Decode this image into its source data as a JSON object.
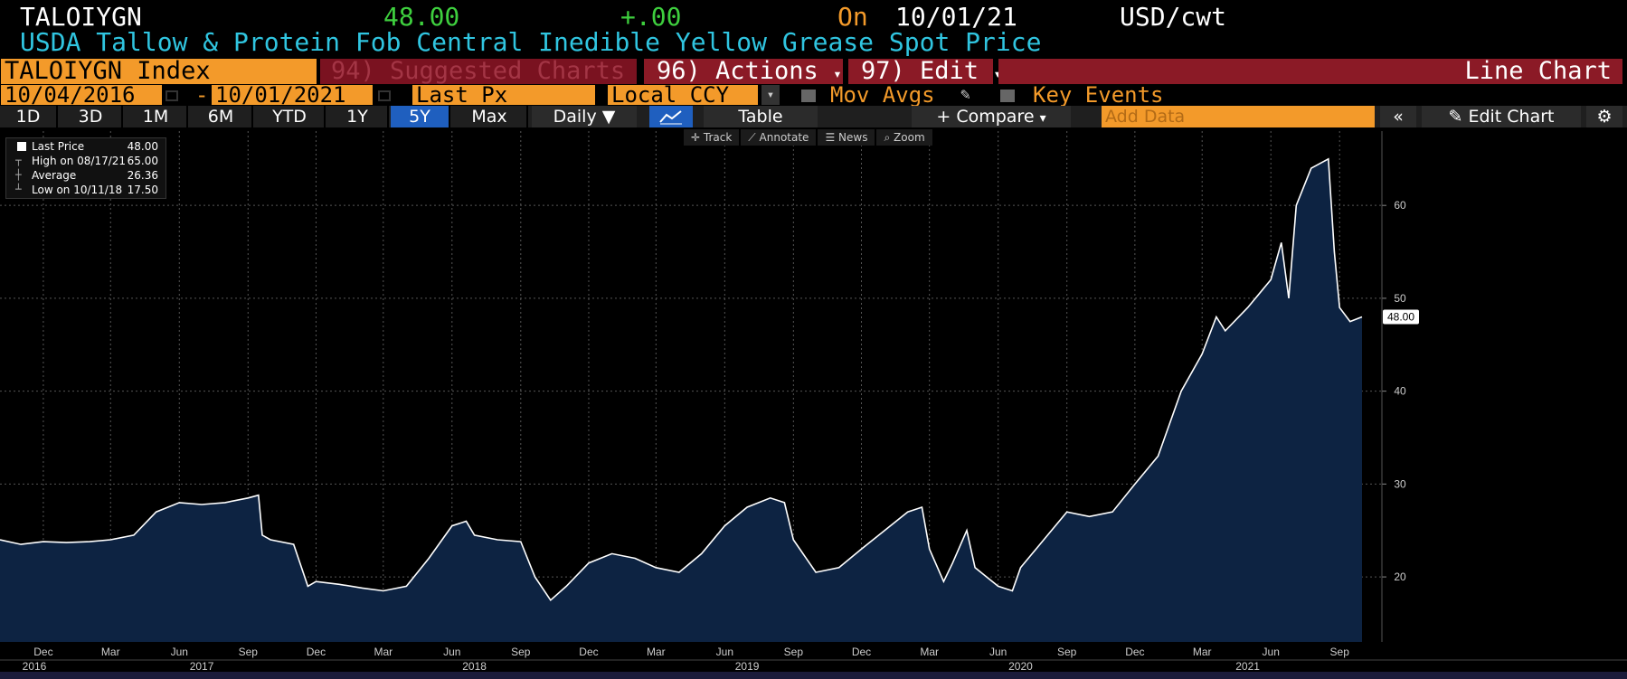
{
  "header": {
    "ticker": "TALOIYGN",
    "price": "48.00",
    "change": "+.00",
    "on_label": "On",
    "date": "10/01/21",
    "unit": "USD/cwt",
    "description": "USDA Tallow & Protein Fob Central Inedible Yellow Grease Spot Price"
  },
  "menu": {
    "index": "TALOIYGN Index",
    "suggested": "94) Suggested Charts",
    "actions": "96) Actions",
    "edit": "97) Edit",
    "chart_kind": "Line Chart"
  },
  "controls": {
    "start_date": "10/04/2016",
    "dash": "-",
    "end_date": "10/01/2021",
    "field": "Last Px",
    "currency": "Local CCY",
    "mov_avgs": "Mov Avgs",
    "key_events": "Key Events"
  },
  "timeframes": [
    "1D",
    "3D",
    "1M",
    "6M",
    "YTD",
    "1Y",
    "5Y",
    "Max"
  ],
  "active_timeframe": "5Y",
  "toolbar": {
    "period": "Daily",
    "table": "Table",
    "compare": "+ Compare",
    "add_data_placeholder": "Add Data",
    "edit_chart": "Edit Chart"
  },
  "tools": {
    "track": "Track",
    "annotate": "Annotate",
    "news": "News",
    "zoom": "Zoom"
  },
  "legend": {
    "last_label": "Last Price",
    "last_value": "48.00",
    "high_label": "High on 08/17/21",
    "high_value": "65.00",
    "avg_label": "Average",
    "avg_value": "26.36",
    "low_label": "Low on 10/11/18",
    "low_value": "17.50"
  },
  "colors": {
    "background": "#000000",
    "line": "#ffffff",
    "fill": "#0d2342",
    "accent": "#f39a2a",
    "title": "#30c5e0",
    "price": "#3ecf3e"
  },
  "chart_data": {
    "type": "area",
    "x_start": "2016-10-04",
    "x_end": "2021-10-01",
    "ylim": [
      13,
      68
    ],
    "yticks": [
      20,
      30,
      40,
      50,
      60
    ],
    "last_value_label": "48.00",
    "grid": true,
    "legend_position": "top-left",
    "month_ticks": [
      {
        "label": "Dec",
        "date": "2016-12-01"
      },
      {
        "label": "Mar",
        "date": "2017-03-01"
      },
      {
        "label": "Jun",
        "date": "2017-06-01"
      },
      {
        "label": "Sep",
        "date": "2017-09-01"
      },
      {
        "label": "Dec",
        "date": "2017-12-01"
      },
      {
        "label": "Mar",
        "date": "2018-03-01"
      },
      {
        "label": "Jun",
        "date": "2018-06-01"
      },
      {
        "label": "Sep",
        "date": "2018-09-01"
      },
      {
        "label": "Dec",
        "date": "2018-12-01"
      },
      {
        "label": "Mar",
        "date": "2019-03-01"
      },
      {
        "label": "Jun",
        "date": "2019-06-01"
      },
      {
        "label": "Sep",
        "date": "2019-09-01"
      },
      {
        "label": "Dec",
        "date": "2019-12-01"
      },
      {
        "label": "Mar",
        "date": "2020-03-01"
      },
      {
        "label": "Jun",
        "date": "2020-06-01"
      },
      {
        "label": "Sep",
        "date": "2020-09-01"
      },
      {
        "label": "Dec",
        "date": "2020-12-01"
      },
      {
        "label": "Mar",
        "date": "2021-03-01"
      },
      {
        "label": "Jun",
        "date": "2021-06-01"
      },
      {
        "label": "Sep",
        "date": "2021-09-01"
      }
    ],
    "year_ticks": [
      {
        "label": "2016",
        "date": "2016-10-04"
      },
      {
        "label": "2017",
        "date": "2017-07-01"
      },
      {
        "label": "2018",
        "date": "2018-07-01"
      },
      {
        "label": "2019",
        "date": "2019-07-01"
      },
      {
        "label": "2020",
        "date": "2020-07-01"
      },
      {
        "label": "2021",
        "date": "2021-05-01"
      }
    ],
    "series": [
      {
        "points": [
          [
            "2016-10-04",
            24.0
          ],
          [
            "2016-11-01",
            23.5
          ],
          [
            "2016-12-01",
            23.8
          ],
          [
            "2017-01-01",
            23.7
          ],
          [
            "2017-02-01",
            23.8
          ],
          [
            "2017-03-01",
            24.0
          ],
          [
            "2017-04-01",
            24.5
          ],
          [
            "2017-05-01",
            27.0
          ],
          [
            "2017-06-01",
            28.0
          ],
          [
            "2017-07-01",
            27.8
          ],
          [
            "2017-08-01",
            28.0
          ],
          [
            "2017-09-01",
            28.5
          ],
          [
            "2017-09-15",
            28.8
          ],
          [
            "2017-09-20",
            24.5
          ],
          [
            "2017-10-01",
            24.0
          ],
          [
            "2017-11-01",
            23.5
          ],
          [
            "2017-11-20",
            19.0
          ],
          [
            "2017-12-01",
            19.5
          ],
          [
            "2018-01-01",
            19.2
          ],
          [
            "2018-02-01",
            18.8
          ],
          [
            "2018-03-01",
            18.5
          ],
          [
            "2018-04-01",
            19.0
          ],
          [
            "2018-05-01",
            22.0
          ],
          [
            "2018-06-01",
            25.5
          ],
          [
            "2018-06-20",
            26.0
          ],
          [
            "2018-07-01",
            24.5
          ],
          [
            "2018-08-01",
            24.0
          ],
          [
            "2018-09-01",
            23.8
          ],
          [
            "2018-09-20",
            20.0
          ],
          [
            "2018-10-11",
            17.5
          ],
          [
            "2018-11-01",
            19.0
          ],
          [
            "2018-12-01",
            21.5
          ],
          [
            "2019-01-01",
            22.5
          ],
          [
            "2019-02-01",
            22.0
          ],
          [
            "2019-03-01",
            21.0
          ],
          [
            "2019-04-01",
            20.5
          ],
          [
            "2019-05-01",
            22.5
          ],
          [
            "2019-06-01",
            25.5
          ],
          [
            "2019-07-01",
            27.5
          ],
          [
            "2019-08-01",
            28.5
          ],
          [
            "2019-08-20",
            28.0
          ],
          [
            "2019-09-01",
            24.0
          ],
          [
            "2019-10-01",
            20.5
          ],
          [
            "2019-11-01",
            21.0
          ],
          [
            "2019-12-01",
            23.0
          ],
          [
            "2020-01-01",
            25.0
          ],
          [
            "2020-02-01",
            27.0
          ],
          [
            "2020-02-20",
            27.5
          ],
          [
            "2020-03-01",
            23.0
          ],
          [
            "2020-03-20",
            19.5
          ],
          [
            "2020-04-01",
            21.5
          ],
          [
            "2020-04-20",
            25.0
          ],
          [
            "2020-05-01",
            21.0
          ],
          [
            "2020-06-01",
            19.0
          ],
          [
            "2020-06-20",
            18.5
          ],
          [
            "2020-07-01",
            21.0
          ],
          [
            "2020-08-01",
            24.0
          ],
          [
            "2020-09-01",
            27.0
          ],
          [
            "2020-10-01",
            26.5
          ],
          [
            "2020-11-01",
            27.0
          ],
          [
            "2020-12-01",
            30.0
          ],
          [
            "2021-01-01",
            33.0
          ],
          [
            "2021-02-01",
            40.0
          ],
          [
            "2021-03-01",
            44.0
          ],
          [
            "2021-03-20",
            48.0
          ],
          [
            "2021-04-01",
            46.5
          ],
          [
            "2021-05-01",
            49.0
          ],
          [
            "2021-06-01",
            52.0
          ],
          [
            "2021-06-15",
            56.0
          ],
          [
            "2021-06-25",
            50.0
          ],
          [
            "2021-07-05",
            60.0
          ],
          [
            "2021-07-25",
            64.0
          ],
          [
            "2021-08-17",
            65.0
          ],
          [
            "2021-08-25",
            55.0
          ],
          [
            "2021-09-01",
            49.0
          ],
          [
            "2021-09-15",
            47.5
          ],
          [
            "2021-10-01",
            48.0
          ]
        ]
      }
    ]
  }
}
